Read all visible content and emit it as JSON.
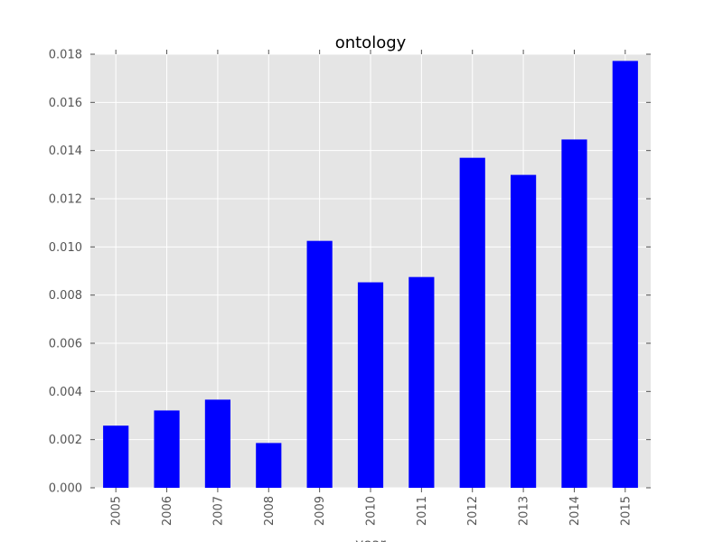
{
  "chart_data": {
    "type": "bar",
    "title": "ontology",
    "xlabel": "year",
    "ylabel": "",
    "categories": [
      "2005",
      "2006",
      "2007",
      "2008",
      "2009",
      "2010",
      "2011",
      "2012",
      "2013",
      "2014",
      "2015"
    ],
    "values": [
      0.00258,
      0.00321,
      0.00366,
      0.00186,
      0.01025,
      0.00853,
      0.00875,
      0.0137,
      0.01299,
      0.01446,
      0.01772
    ],
    "ylim": [
      0,
      0.018
    ],
    "yticks": [
      "0.000",
      "0.002",
      "0.004",
      "0.006",
      "0.008",
      "0.010",
      "0.012",
      "0.014",
      "0.016",
      "0.018"
    ],
    "ytick_values": [
      0,
      0.002,
      0.004,
      0.006,
      0.008,
      0.01,
      0.012,
      0.014,
      0.016,
      0.018
    ],
    "grid": true,
    "legend": "none",
    "colors": {
      "bar": "#0000ff",
      "plot_background": "#e5e5e5",
      "grid": "#ffffff",
      "tick_text": "#555555",
      "tick_mark": "#555555"
    }
  }
}
